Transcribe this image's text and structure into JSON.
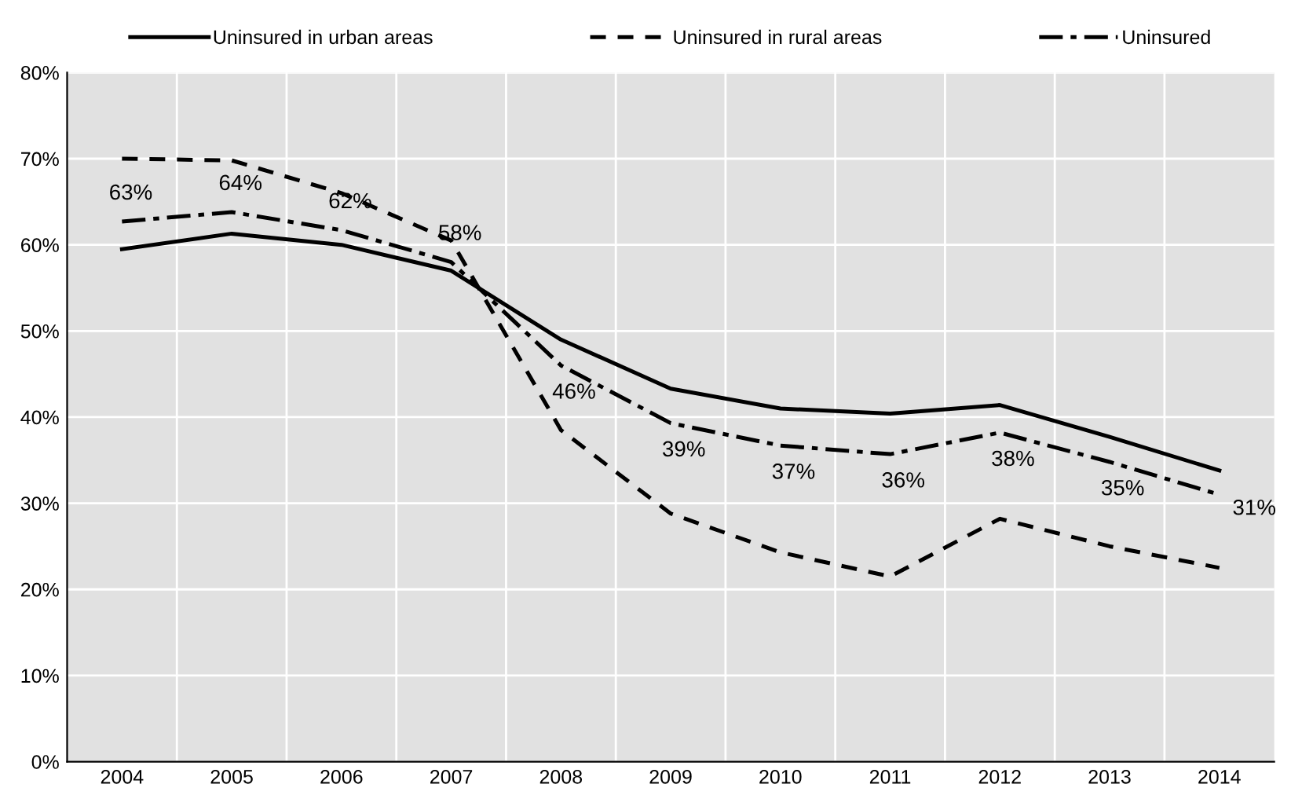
{
  "chart_data": {
    "type": "line",
    "categories": [
      "2004",
      "2005",
      "2006",
      "2007",
      "2008",
      "2009",
      "2010",
      "2011",
      "2012",
      "2013",
      "2014"
    ],
    "series": [
      {
        "name": "Uninsured in urban areas",
        "color": "#000000",
        "line_style": "solid",
        "values": [
          59.5,
          61.3,
          60,
          57,
          49,
          43.3,
          41,
          40.4,
          41.4,
          37.7,
          33.8
        ]
      },
      {
        "name": "Uninsured in rural areas",
        "color": "#000000",
        "line_style": "dashed",
        "values": [
          70,
          69.8,
          66,
          60.5,
          38.5,
          28.8,
          24.3,
          21.5,
          28.2,
          25,
          22.5
        ]
      },
      {
        "name": "Uninsured",
        "color": "#000000",
        "line_style": "dashdot",
        "values": [
          62.7,
          63.8,
          61.7,
          58,
          46,
          39.3,
          36.7,
          35.7,
          38.2,
          34.8,
          31
        ],
        "value_labels": [
          "63%",
          "64%",
          "62%",
          "58%",
          "46%",
          "39%",
          "37%",
          "36%",
          "38%",
          "35%",
          "31%"
        ]
      }
    ],
    "ylim": [
      0,
      80
    ],
    "yticks": [
      {
        "value": 0,
        "label": "0%"
      },
      {
        "value": 10,
        "label": "10%"
      },
      {
        "value": 20,
        "label": "20%"
      },
      {
        "value": 30,
        "label": "30%"
      },
      {
        "value": 40,
        "label": "40%"
      },
      {
        "value": 50,
        "label": "50%"
      },
      {
        "value": 60,
        "label": "60%"
      },
      {
        "value": 70,
        "label": "70%"
      },
      {
        "value": 80,
        "label": "80%"
      }
    ],
    "grid": true,
    "legend": "top",
    "marker": "none"
  }
}
